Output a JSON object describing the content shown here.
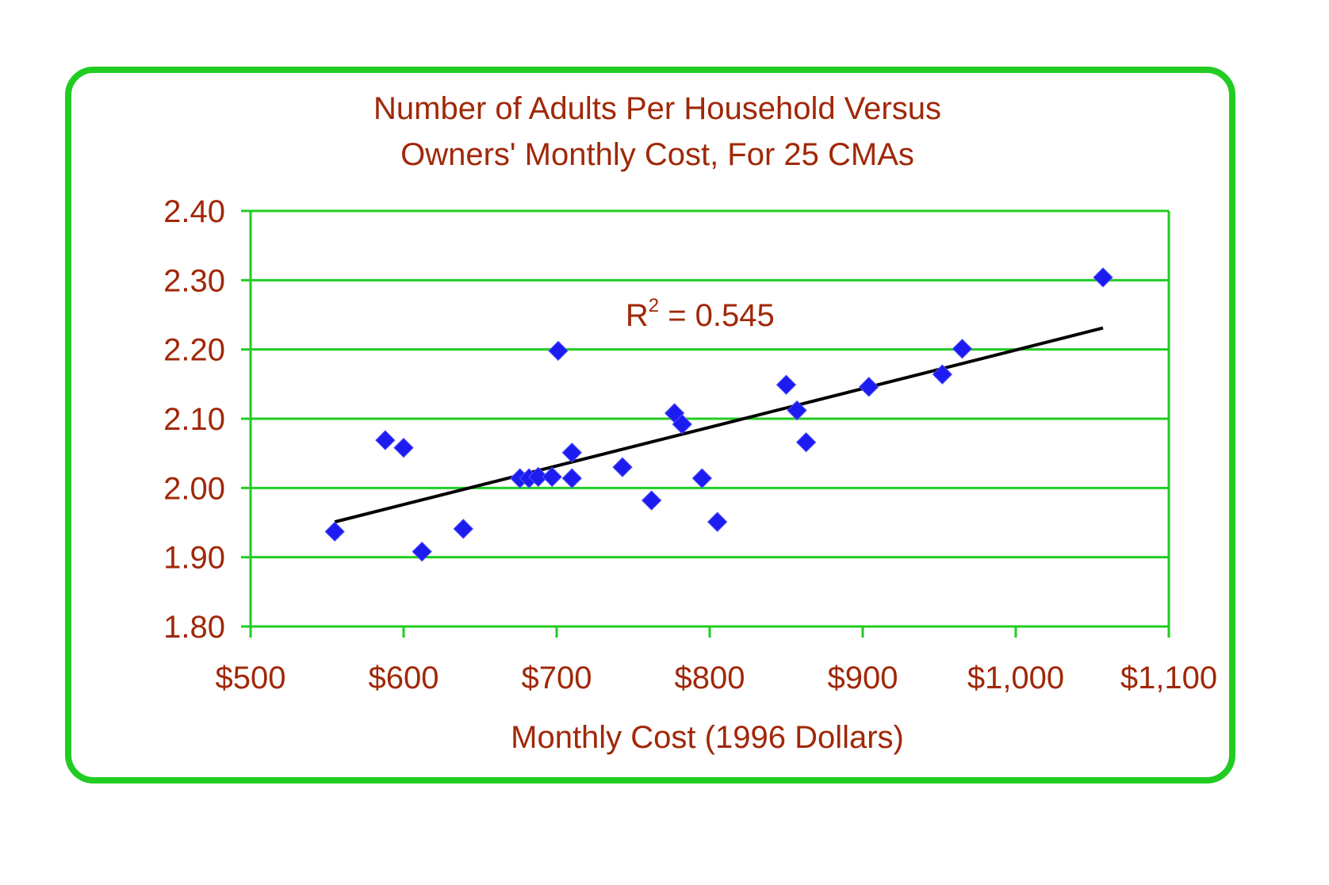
{
  "chart_data": {
    "type": "scatter",
    "title_lines": [
      "Number of Adults Per Household Versus",
      "Owners' Monthly Cost, For 25 CMAs"
    ],
    "xlabel": "Monthly Cost (1996 Dollars)",
    "ylabel": "",
    "xlim": [
      500,
      1100
    ],
    "ylim": [
      1.8,
      2.4
    ],
    "x_ticks": [
      500,
      600,
      700,
      800,
      900,
      1000,
      1100
    ],
    "x_tick_labels": [
      "$500",
      "$600",
      "$700",
      "$800",
      "$900",
      "$1,000",
      "$1,100"
    ],
    "y_ticks": [
      1.8,
      1.9,
      2.0,
      2.1,
      2.2,
      2.3,
      2.4
    ],
    "y_tick_labels": [
      "1.80",
      "1.90",
      "2.00",
      "2.10",
      "2.20",
      "2.30",
      "2.40"
    ],
    "grid": "horizontal",
    "points": [
      {
        "x": 555,
        "y": 1.937
      },
      {
        "x": 588,
        "y": 2.069
      },
      {
        "x": 600,
        "y": 2.058
      },
      {
        "x": 612,
        "y": 1.908
      },
      {
        "x": 639,
        "y": 1.941
      },
      {
        "x": 676,
        "y": 2.014
      },
      {
        "x": 682,
        "y": 2.014
      },
      {
        "x": 688,
        "y": 2.016
      },
      {
        "x": 697,
        "y": 2.016
      },
      {
        "x": 701,
        "y": 2.198
      },
      {
        "x": 710,
        "y": 2.051
      },
      {
        "x": 710,
        "y": 2.014
      },
      {
        "x": 743,
        "y": 2.03
      },
      {
        "x": 762,
        "y": 1.982
      },
      {
        "x": 777,
        "y": 2.108
      },
      {
        "x": 782,
        "y": 2.092
      },
      {
        "x": 795,
        "y": 2.014
      },
      {
        "x": 805,
        "y": 1.951
      },
      {
        "x": 850,
        "y": 2.149
      },
      {
        "x": 857,
        "y": 2.112
      },
      {
        "x": 863,
        "y": 2.066
      },
      {
        "x": 904,
        "y": 2.146
      },
      {
        "x": 952,
        "y": 2.164
      },
      {
        "x": 965,
        "y": 2.201
      },
      {
        "x": 1057,
        "y": 2.304
      }
    ],
    "trendline": {
      "x": [
        555,
        1057
      ],
      "y": [
        1.951,
        2.231
      ]
    },
    "annotation": {
      "base": "R",
      "superscript": "2",
      "text": " = 0.545",
      "x": 745,
      "y": 2.25
    }
  },
  "colors": {
    "frame": "#22cc22",
    "grid": "#22cc22",
    "text": "#a02808",
    "marker": "#1c1cf0",
    "trend": "#000000"
  }
}
